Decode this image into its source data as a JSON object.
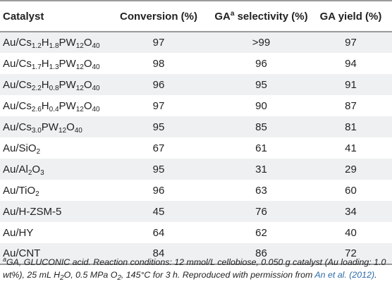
{
  "table": {
    "headers": {
      "catalyst": "Catalyst",
      "conversion": "Conversion (%)",
      "selectivity_prefix": "GA",
      "selectivity_sup": "a",
      "selectivity_suffix": " selectivity (%)",
      "yield": "GA yield (%)"
    },
    "rows": [
      {
        "catalyst": [
          {
            "t": "Au/Cs"
          },
          {
            "sub": "1.2"
          },
          {
            "t": "H"
          },
          {
            "sub": "1.8"
          },
          {
            "t": "PW"
          },
          {
            "sub": "12"
          },
          {
            "t": "O"
          },
          {
            "sub": "40"
          }
        ],
        "conversion": "97",
        "selectivity": ">99",
        "yield": "97"
      },
      {
        "catalyst": [
          {
            "t": "Au/Cs"
          },
          {
            "sub": "1.7"
          },
          {
            "t": "H"
          },
          {
            "sub": "1.3"
          },
          {
            "t": "PW"
          },
          {
            "sub": "12"
          },
          {
            "t": "O"
          },
          {
            "sub": "40"
          }
        ],
        "conversion": "98",
        "selectivity": "96",
        "yield": "94"
      },
      {
        "catalyst": [
          {
            "t": "Au/Cs"
          },
          {
            "sub": "2.2"
          },
          {
            "t": "H"
          },
          {
            "sub": "0.8"
          },
          {
            "t": "PW"
          },
          {
            "sub": "12"
          },
          {
            "t": "O"
          },
          {
            "sub": "40"
          }
        ],
        "conversion": "96",
        "selectivity": "95",
        "yield": "91"
      },
      {
        "catalyst": [
          {
            "t": "Au/Cs"
          },
          {
            "sub": "2.6"
          },
          {
            "t": "H"
          },
          {
            "sub": "0.4"
          },
          {
            "t": "PW"
          },
          {
            "sub": "12"
          },
          {
            "t": "O"
          },
          {
            "sub": "40"
          }
        ],
        "conversion": "97",
        "selectivity": "90",
        "yield": "87"
      },
      {
        "catalyst": [
          {
            "t": "Au/Cs"
          },
          {
            "sub": "3.0"
          },
          {
            "t": "PW"
          },
          {
            "sub": "12"
          },
          {
            "t": "O"
          },
          {
            "sub": "40"
          }
        ],
        "conversion": "95",
        "selectivity": "85",
        "yield": "81"
      },
      {
        "catalyst": [
          {
            "t": "Au/SiO"
          },
          {
            "sub": "2"
          }
        ],
        "conversion": "67",
        "selectivity": "61",
        "yield": "41"
      },
      {
        "catalyst": [
          {
            "t": "Au/Al"
          },
          {
            "sub": "2"
          },
          {
            "t": "O"
          },
          {
            "sub": "3"
          }
        ],
        "conversion": "95",
        "selectivity": "31",
        "yield": "29"
      },
      {
        "catalyst": [
          {
            "t": "Au/TiO"
          },
          {
            "sub": "2"
          }
        ],
        "conversion": "96",
        "selectivity": "63",
        "yield": "60"
      },
      {
        "catalyst": [
          {
            "t": "Au/H-ZSM-5"
          }
        ],
        "conversion": "45",
        "selectivity": "76",
        "yield": "34"
      },
      {
        "catalyst": [
          {
            "t": "Au/HY"
          }
        ],
        "conversion": "64",
        "selectivity": "62",
        "yield": "40"
      },
      {
        "catalyst": [
          {
            "t": "Au/CNT"
          }
        ],
        "conversion": "84",
        "selectivity": "86",
        "yield": "72"
      }
    ]
  },
  "footnote": {
    "sup": "a",
    "text": "GA, GLUCONIC acid. Reaction conditions: 12 mmol/L cellobiose, 0.050 g catalyst (Au loading: 1.0 wt%), 25 mL H",
    "h2o_sub": "2",
    "text2": "O, 0.5 MPa O",
    "o2_sub": "2",
    "text3": ", 145°C for 3 h. Reproduced with permission from ",
    "ref": "An et al. (2012)",
    "end": "."
  }
}
